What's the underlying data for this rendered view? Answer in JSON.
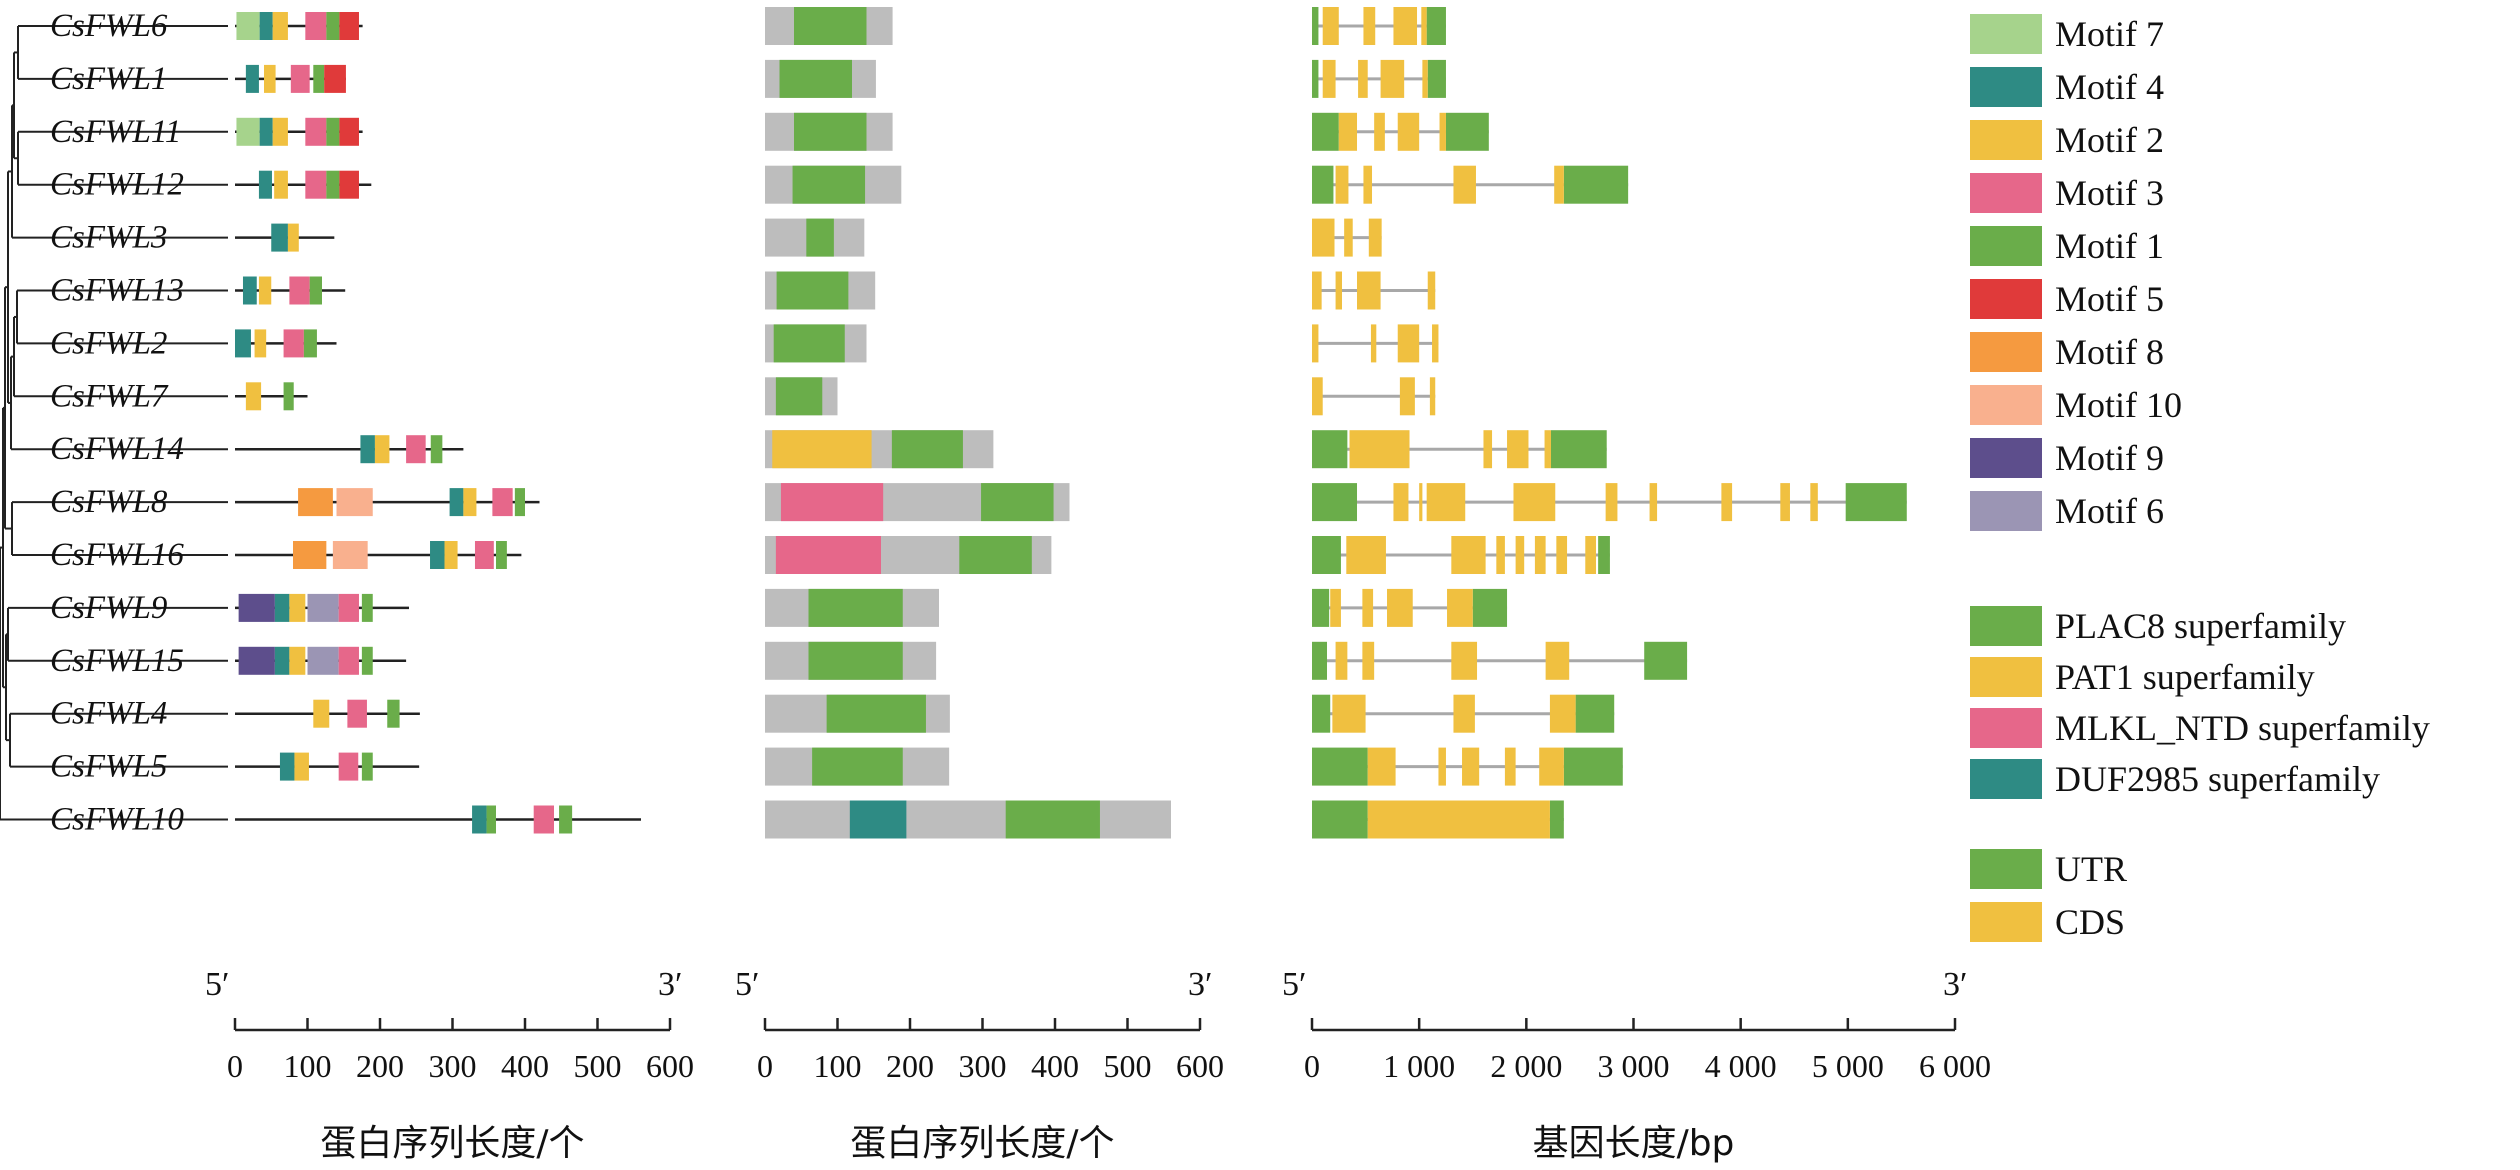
{
  "legend": {
    "motifs": [
      {
        "id": "m7",
        "label": "Motif 7",
        "color": "#a6d38c"
      },
      {
        "id": "m4",
        "label": "Motif 4",
        "color": "#2e8b84"
      },
      {
        "id": "m2",
        "label": "Motif 2",
        "color": "#f0c040"
      },
      {
        "id": "m3",
        "label": "Motif 3",
        "color": "#e6678a"
      },
      {
        "id": "m1",
        "label": "Motif 1",
        "color": "#6aad4a"
      },
      {
        "id": "m5",
        "label": "Motif 5",
        "color": "#e03a3a"
      },
      {
        "id": "m8",
        "label": "Motif 8",
        "color": "#f59a40"
      },
      {
        "id": "m10",
        "label": "Motif 10",
        "color": "#f9b08e"
      },
      {
        "id": "m9",
        "label": "Motif 9",
        "color": "#5d4e8c"
      },
      {
        "id": "m6",
        "label": "Motif 6",
        "color": "#9b95b4"
      }
    ],
    "domains": [
      {
        "id": "PLAC8",
        "label": "PLAC8 superfamily",
        "color": "#6aad4a"
      },
      {
        "id": "PAT1",
        "label": "PAT1 superfamily",
        "color": "#f0c040"
      },
      {
        "id": "MLKL",
        "label": "MLKL_NTD superfamily",
        "color": "#e6678a"
      },
      {
        "id": "DUF",
        "label": "DUF2985 superfamily",
        "color": "#2e8b84"
      }
    ],
    "structure": [
      {
        "id": "UTR",
        "label": "UTR",
        "color": "#6aad4a"
      },
      {
        "id": "CDS",
        "label": "CDS",
        "color": "#f0c040"
      }
    ]
  },
  "panels": [
    {
      "id": "motif",
      "xlabel": "蛋白序列长度/个",
      "end5": "5′",
      "end3": "3′",
      "max": 600,
      "ticks": [
        "0",
        "100",
        "200",
        "300",
        "400",
        "500",
        "600"
      ]
    },
    {
      "id": "domain",
      "xlabel": "蛋白序列长度/个",
      "end5": "5′",
      "end3": "3′",
      "max": 600,
      "ticks": [
        "0",
        "100",
        "200",
        "300",
        "400",
        "500",
        "600"
      ]
    },
    {
      "id": "gene",
      "xlabel": "基因长度/bp",
      "end5": "5′",
      "end3": "3′",
      "max": 6000,
      "ticks": [
        "0",
        "1 000",
        "2 000",
        "3 000",
        "4 000",
        "5 000",
        "6 000"
      ]
    }
  ],
  "genes": [
    {
      "name": "CsFWL6",
      "len": 176,
      "motifs": [
        [
          "m7",
          2,
          34
        ],
        [
          "m4",
          34,
          52
        ],
        [
          "m2",
          52,
          73
        ],
        [
          "m3",
          97,
          126
        ],
        [
          "m1",
          126,
          144
        ],
        [
          "m5",
          144,
          171
        ]
      ],
      "domains": [
        [
          "PLAC8",
          40,
          140
        ]
      ],
      "gene": {
        "len": 1250,
        "utr": [
          [
            0,
            60
          ],
          [
            1070,
            1250
          ]
        ],
        "cds": [
          [
            100,
            250
          ],
          [
            480,
            590
          ],
          [
            760,
            980
          ],
          [
            1020,
            1070
          ]
        ]
      }
    },
    {
      "name": "CsFWL1",
      "len": 153,
      "motifs": [
        [
          "m4",
          15,
          33
        ],
        [
          "m2",
          40,
          56
        ],
        [
          "m3",
          77,
          103
        ],
        [
          "m1",
          108,
          123
        ],
        [
          "m5",
          123,
          153
        ]
      ],
      "domains": [
        [
          "PLAC8",
          20,
          120
        ]
      ],
      "gene": {
        "len": 1250,
        "utr": [
          [
            0,
            60
          ],
          [
            1080,
            1250
          ]
        ],
        "cds": [
          [
            100,
            220
          ],
          [
            430,
            520
          ],
          [
            640,
            860
          ],
          [
            1030,
            1080
          ]
        ]
      }
    },
    {
      "name": "CsFWL11",
      "len": 176,
      "motifs": [
        [
          "m7",
          2,
          34
        ],
        [
          "m4",
          34,
          52
        ],
        [
          "m2",
          52,
          73
        ],
        [
          "m3",
          97,
          126
        ],
        [
          "m1",
          126,
          144
        ],
        [
          "m5",
          144,
          171
        ]
      ],
      "domains": [
        [
          "PLAC8",
          40,
          140
        ]
      ],
      "gene": {
        "len": 1650,
        "utr": [
          [
            0,
            250
          ],
          [
            1250,
            1650
          ]
        ],
        "cds": [
          [
            250,
            420
          ],
          [
            580,
            680
          ],
          [
            800,
            1000
          ],
          [
            1190,
            1250
          ]
        ]
      }
    },
    {
      "name": "CsFWL12",
      "len": 188,
      "motifs": [
        [
          "m4",
          33,
          51
        ],
        [
          "m2",
          54,
          73
        ],
        [
          "m3",
          97,
          126
        ],
        [
          "m1",
          126,
          144
        ],
        [
          "m5",
          144,
          171
        ]
      ],
      "domains": [
        [
          "PLAC8",
          38,
          138
        ]
      ],
      "gene": {
        "len": 2950,
        "utr": [
          [
            0,
            200
          ],
          [
            2350,
            2950
          ]
        ],
        "cds": [
          [
            220,
            340
          ],
          [
            480,
            560
          ],
          [
            1320,
            1530
          ],
          [
            2260,
            2350
          ]
        ]
      }
    },
    {
      "name": "CsFWL3",
      "len": 137,
      "motifs": [
        [
          "m4",
          50,
          73
        ],
        [
          "m2",
          73,
          88
        ]
      ],
      "domains": [
        [
          "PLAC8",
          57,
          95
        ]
      ],
      "gene": {
        "len": 650,
        "utr": [],
        "cds": [
          [
            0,
            210
          ],
          [
            300,
            380
          ],
          [
            530,
            650
          ]
        ]
      }
    },
    {
      "name": "CsFWL13",
      "len": 152,
      "motifs": [
        [
          "m4",
          11,
          30
        ],
        [
          "m2",
          33,
          50
        ],
        [
          "m3",
          75,
          103
        ],
        [
          "m1",
          103,
          120
        ]
      ],
      "domains": [
        [
          "PLAC8",
          16,
          115
        ]
      ],
      "gene": {
        "len": 1150,
        "utr": [],
        "cds": [
          [
            0,
            90
          ],
          [
            220,
            280
          ],
          [
            420,
            640
          ],
          [
            1080,
            1150
          ]
        ]
      }
    },
    {
      "name": "CsFWL2",
      "len": 140,
      "motifs": [
        [
          "m4",
          0,
          22
        ],
        [
          "m2",
          27,
          43
        ],
        [
          "m3",
          67,
          95
        ],
        [
          "m1",
          95,
          113
        ]
      ],
      "domains": [
        [
          "PLAC8",
          12,
          110
        ]
      ],
      "gene": {
        "len": 1180,
        "utr": [],
        "cds": [
          [
            0,
            60
          ],
          [
            550,
            600
          ],
          [
            800,
            1000
          ],
          [
            1120,
            1180
          ]
        ]
      }
    },
    {
      "name": "CsFWL7",
      "len": 100,
      "motifs": [
        [
          "m2",
          15,
          36
        ],
        [
          "m1",
          67,
          81
        ]
      ],
      "domains": [
        [
          "PLAC8",
          15,
          79
        ]
      ],
      "gene": {
        "len": 1150,
        "utr": [],
        "cds": [
          [
            0,
            100
          ],
          [
            820,
            960
          ],
          [
            1100,
            1150
          ]
        ]
      }
    },
    {
      "name": "CsFWL14",
      "len": 315,
      "motifs": [
        [
          "m4",
          173,
          193
        ],
        [
          "m2",
          193,
          213
        ],
        [
          "m3",
          236,
          263
        ],
        [
          "m1",
          270,
          286
        ]
      ],
      "domains": [
        [
          "PAT1",
          10,
          147
        ],
        [
          "PLAC8",
          175,
          273
        ]
      ],
      "gene": {
        "len": 2750,
        "utr": [
          [
            0,
            330
          ],
          [
            2230,
            2750
          ]
        ],
        "cds": [
          [
            350,
            910
          ],
          [
            1600,
            1680
          ],
          [
            1820,
            2020
          ],
          [
            2170,
            2230
          ]
        ]
      }
    },
    {
      "name": "CsFWL8",
      "len": 420,
      "motifs": [
        [
          "m8",
          87,
          135
        ],
        [
          "m10",
          140,
          190
        ],
        [
          "m4",
          296,
          315
        ],
        [
          "m2",
          315,
          333
        ],
        [
          "m3",
          355,
          383
        ],
        [
          "m1",
          386,
          400
        ]
      ],
      "domains": [
        [
          "MLKL",
          22,
          163
        ],
        [
          "PLAC8",
          298,
          398
        ]
      ],
      "gene": {
        "len": 5550,
        "utr": [
          [
            0,
            420
          ],
          [
            4980,
            5550
          ]
        ],
        "cds": [
          [
            760,
            900
          ],
          [
            1000,
            1030
          ],
          [
            1070,
            1430
          ],
          [
            1880,
            2270
          ],
          [
            2740,
            2850
          ],
          [
            3150,
            3220
          ],
          [
            3820,
            3920
          ],
          [
            4370,
            4460
          ],
          [
            4650,
            4720
          ]
        ]
      }
    },
    {
      "name": "CsFWL16",
      "len": 395,
      "motifs": [
        [
          "m8",
          80,
          126
        ],
        [
          "m10",
          135,
          183
        ],
        [
          "m4",
          269,
          289
        ],
        [
          "m2",
          289,
          307
        ],
        [
          "m3",
          331,
          357
        ],
        [
          "m1",
          360,
          375
        ]
      ],
      "domains": [
        [
          "MLKL",
          15,
          160
        ],
        [
          "PLAC8",
          268,
          368
        ]
      ],
      "gene": {
        "len": 2780,
        "utr": [
          [
            0,
            270
          ],
          [
            2670,
            2780
          ]
        ],
        "cds": [
          [
            320,
            690
          ],
          [
            1300,
            1620
          ],
          [
            1720,
            1800
          ],
          [
            1900,
            1980
          ],
          [
            2080,
            2180
          ],
          [
            2280,
            2380
          ],
          [
            2550,
            2650
          ]
        ]
      }
    },
    {
      "name": "CsFWL9",
      "len": 240,
      "motifs": [
        [
          "m9",
          5,
          55
        ],
        [
          "m4",
          55,
          75
        ],
        [
          "m2",
          75,
          97
        ],
        [
          "m6",
          100,
          143
        ],
        [
          "m3",
          143,
          171
        ],
        [
          "m1",
          175,
          190
        ]
      ],
      "domains": [
        [
          "PLAC8",
          60,
          190
        ]
      ],
      "gene": {
        "len": 1820,
        "utr": [
          [
            0,
            160
          ],
          [
            1500,
            1820
          ]
        ],
        "cds": [
          [
            170,
            270
          ],
          [
            470,
            570
          ],
          [
            700,
            940
          ],
          [
            1260,
            1500
          ]
        ]
      }
    },
    {
      "name": "CsFWL15",
      "len": 236,
      "motifs": [
        [
          "m9",
          5,
          55
        ],
        [
          "m4",
          55,
          75
        ],
        [
          "m2",
          75,
          97
        ],
        [
          "m6",
          100,
          143
        ],
        [
          "m3",
          143,
          171
        ],
        [
          "m1",
          175,
          190
        ]
      ],
      "domains": [
        [
          "PLAC8",
          60,
          190
        ]
      ],
      "gene": {
        "len": 3500,
        "utr": [
          [
            0,
            140
          ],
          [
            3100,
            3500
          ]
        ],
        "cds": [
          [
            220,
            330
          ],
          [
            470,
            580
          ],
          [
            1300,
            1540
          ],
          [
            2180,
            2400
          ]
        ]
      }
    },
    {
      "name": "CsFWL4",
      "len": 255,
      "motifs": [
        [
          "m2",
          108,
          130
        ],
        [
          "m3",
          155,
          182
        ],
        [
          "m1",
          210,
          227
        ]
      ],
      "domains": [
        [
          "PLAC8",
          85,
          222
        ]
      ],
      "gene": {
        "len": 2820,
        "utr": [
          [
            0,
            170
          ],
          [
            2460,
            2820
          ]
        ],
        "cds": [
          [
            190,
            500
          ],
          [
            1320,
            1520
          ],
          [
            2220,
            2460
          ]
        ]
      }
    },
    {
      "name": "CsFWL5",
      "len": 254,
      "motifs": [
        [
          "m4",
          62,
          82
        ],
        [
          "m2",
          82,
          102
        ],
        [
          "m3",
          143,
          170
        ],
        [
          "m1",
          175,
          190
        ]
      ],
      "domains": [
        [
          "PLAC8",
          65,
          190
        ]
      ],
      "gene": {
        "len": 2900,
        "utr": [
          [
            0,
            520
          ],
          [
            2350,
            2900
          ]
        ],
        "cds": [
          [
            520,
            780
          ],
          [
            1180,
            1250
          ],
          [
            1400,
            1560
          ],
          [
            1800,
            1900
          ],
          [
            2120,
            2350
          ]
        ]
      }
    },
    {
      "name": "CsFWL10",
      "len": 560,
      "motifs": [
        [
          "m4",
          327,
          347
        ],
        [
          "m1",
          347,
          360
        ],
        [
          "m3",
          412,
          440
        ],
        [
          "m1",
          447,
          465
        ]
      ],
      "domains": [
        [
          "DUF",
          117,
          195
        ],
        [
          "PLAC8",
          332,
          462
        ]
      ],
      "gene": {
        "len": 2350,
        "utr": [
          [
            0,
            520
          ],
          [
            2220,
            2350
          ]
        ],
        "cds": [
          [
            520,
            2220
          ]
        ]
      }
    }
  ]
}
